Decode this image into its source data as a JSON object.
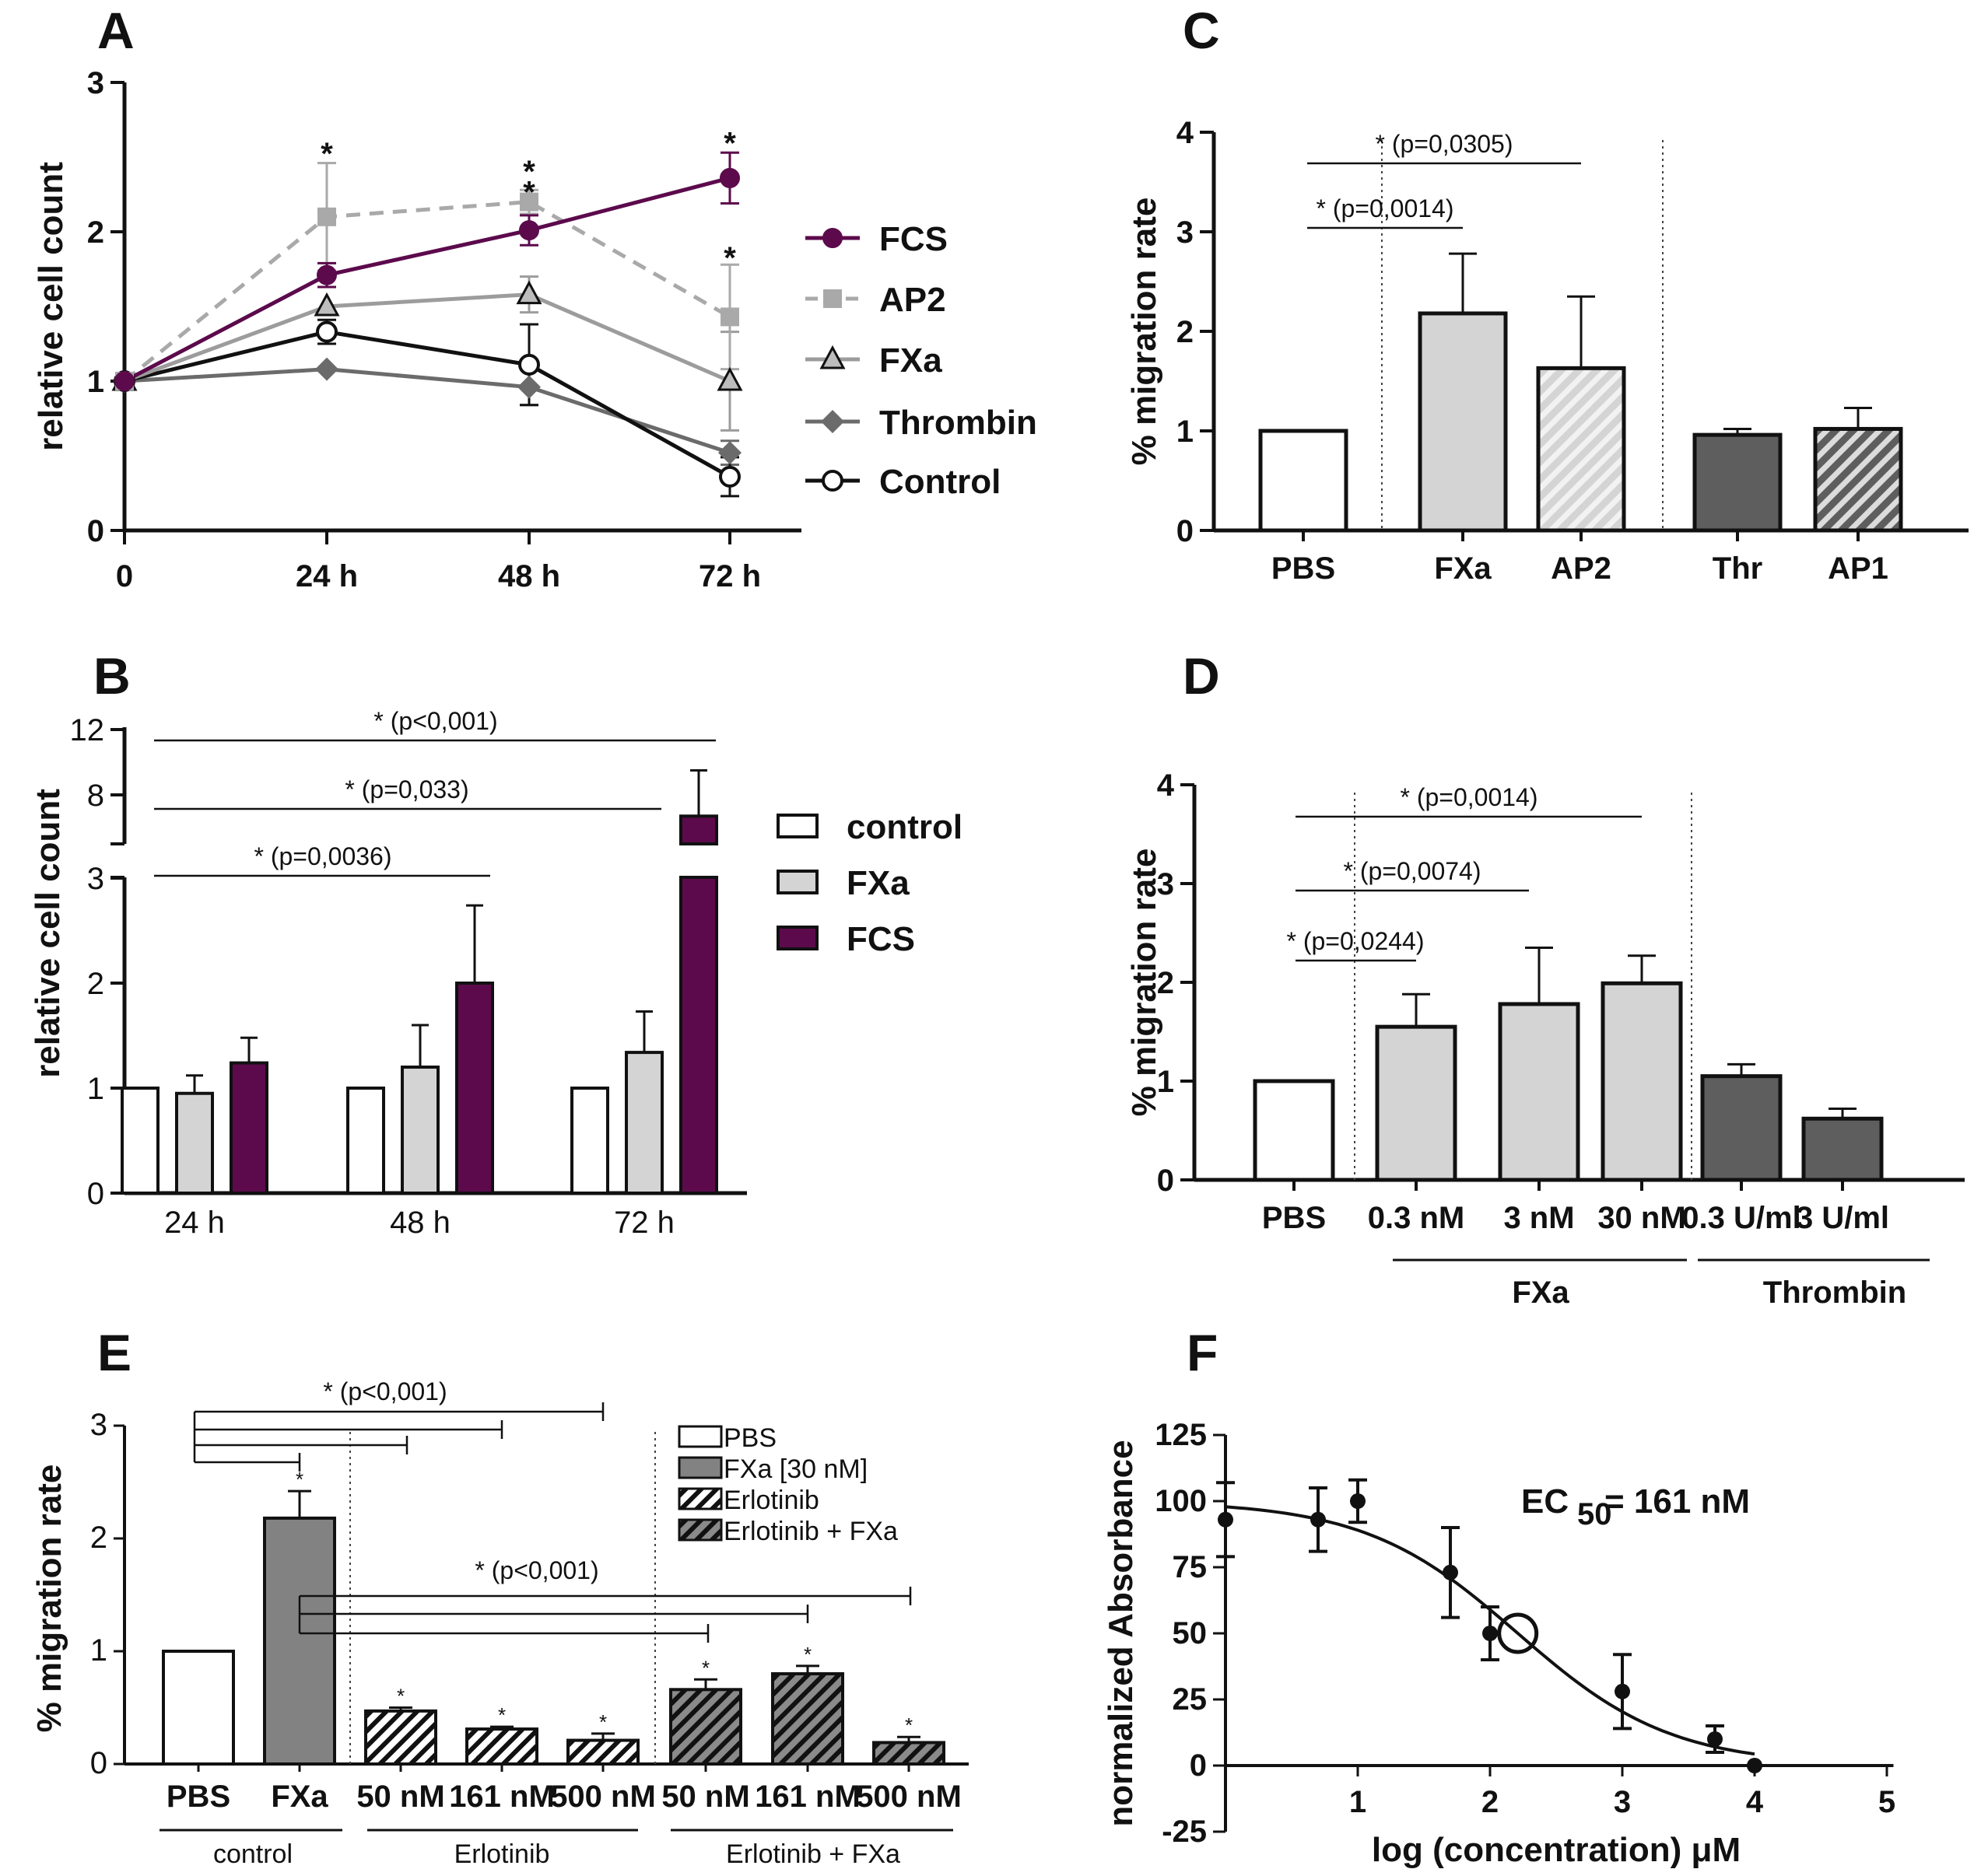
{
  "figure": {
    "panels": [
      "A",
      "B",
      "C",
      "D",
      "E",
      "F"
    ]
  },
  "colors": {
    "fcs": "#5c0a4c",
    "ap2": "#a9a9a9",
    "fxa_line": "#9c9c9c",
    "thrombin": "#6b6b6b",
    "control": "#111111",
    "light_bar": "#d4d4d4",
    "dark_bar": "#5e5e5e",
    "mid_bar": "#828282"
  },
  "chart_data": [
    {
      "id": "A",
      "type": "line",
      "ylabel": "relative cell count",
      "categories": [
        "0",
        "24 h",
        "48 h",
        "72 h"
      ],
      "ylim": [
        0,
        3
      ],
      "yticks": [
        "0",
        "1",
        "2",
        "3"
      ],
      "series": [
        {
          "name": "FCS",
          "marker": "circle-filled",
          "values": [
            1.0,
            1.71,
            2.01,
            2.36
          ],
          "err": [
            0,
            0.08,
            0.1,
            0.17
          ]
        },
        {
          "name": "AP2",
          "marker": "square",
          "dashed": true,
          "values": [
            1.0,
            2.1,
            2.2,
            1.43
          ],
          "err": [
            0,
            0.36,
            0.08,
            0.35
          ]
        },
        {
          "name": "FXa",
          "marker": "triangle",
          "values": [
            1.0,
            1.5,
            1.58,
            1.0
          ],
          "err": [
            0,
            0.0,
            0.12,
            0.33
          ]
        },
        {
          "name": "Thrombin",
          "marker": "diamond",
          "values": [
            1.0,
            1.08,
            0.96,
            0.52
          ],
          "err": [
            0,
            0.0,
            0.12,
            0.08
          ]
        },
        {
          "name": "Control",
          "marker": "circle-open",
          "values": [
            1.0,
            1.33,
            1.11,
            0.36
          ],
          "err": [
            0,
            0.08,
            0.27,
            0.13
          ]
        }
      ],
      "stars": [
        {
          "x": "24 h",
          "y": 2.6,
          "text": "*"
        },
        {
          "x": "48 h",
          "y": 2.48,
          "text": "*"
        },
        {
          "x": "48 h",
          "y": 2.34,
          "text": "*"
        },
        {
          "x": "72 h",
          "y": 2.67,
          "text": "*"
        },
        {
          "x": "72 h",
          "y": 1.9,
          "text": "*"
        }
      ]
    },
    {
      "id": "B",
      "type": "bar",
      "ylabel": "relative cell count",
      "categories": [
        "24 h",
        "48 h",
        "72 h"
      ],
      "ylim_lower": [
        0,
        3
      ],
      "ylim_upper": [
        5,
        12
      ],
      "yticks_lower": [
        "0",
        "1",
        "2",
        "3"
      ],
      "yticks_upper": [
        "8",
        "12"
      ],
      "series": [
        {
          "name": "control",
          "values": [
            1.0,
            1.0,
            1.0
          ],
          "err": [
            0,
            0,
            0
          ]
        },
        {
          "name": "FXa",
          "values": [
            0.95,
            1.2,
            1.34
          ],
          "err": [
            0.17,
            0.4,
            0.39
          ]
        },
        {
          "name": "FCS",
          "values": [
            1.24,
            2.0,
            6.7
          ],
          "err": [
            0.24,
            0.74,
            2.8
          ]
        }
      ],
      "significance": [
        {
          "label": "* (p=0,0036)",
          "from": "24 h",
          "to": "48 h"
        },
        {
          "label": "* (p=0,033)",
          "from": "24 h",
          "to": "72 h"
        },
        {
          "label": "* (p<0,001)",
          "from": "24 h",
          "to": "72 h"
        }
      ]
    },
    {
      "id": "C",
      "type": "bar",
      "ylabel": "% migration rate",
      "categories": [
        "PBS",
        "FXa",
        "AP2",
        "Thr",
        "AP1"
      ],
      "values": [
        1.0,
        2.18,
        1.63,
        0.96,
        1.02
      ],
      "err": [
        0,
        0.6,
        0.72,
        0.06,
        0.21
      ],
      "ylim": [
        0,
        4
      ],
      "yticks": [
        "0",
        "1",
        "2",
        "3",
        "4"
      ],
      "significance": [
        {
          "label": "* (p=0,0305)",
          "from": "PBS",
          "to": "AP2"
        },
        {
          "label": "* (p=0,0014)",
          "from": "PBS",
          "to": "FXa"
        }
      ]
    },
    {
      "id": "D",
      "type": "bar",
      "ylabel": "% migration rate",
      "categories": [
        "PBS",
        "0.3 nM",
        "3 nM",
        "30 nM",
        "0.3 U/ml",
        "3 U/ml"
      ],
      "values": [
        1.0,
        1.55,
        1.78,
        1.99,
        1.05,
        0.62
      ],
      "err": [
        0,
        0.33,
        0.57,
        0.28,
        0.12,
        0.1
      ],
      "ylim": [
        0,
        4
      ],
      "yticks": [
        "0",
        "1",
        "2",
        "3",
        "4"
      ],
      "groups": [
        {
          "label": "FXa",
          "from": "0.3 nM",
          "to": "30 nM"
        },
        {
          "label": "Thrombin",
          "from": "0.3 U/ml",
          "to": "3 U/ml"
        }
      ],
      "significance": [
        {
          "label": "* (p=0,0014)",
          "from": "PBS",
          "to": "30 nM"
        },
        {
          "label": "* (p=0,0074)",
          "from": "PBS",
          "to": "3 nM"
        },
        {
          "label": "* (p=0,0244)",
          "from": "PBS",
          "to": "0.3 nM"
        }
      ]
    },
    {
      "id": "E",
      "type": "bar",
      "ylabel": "% migration rate",
      "categories": [
        "PBS",
        "FXa",
        "50 nM",
        "161 nM",
        "500 nM",
        "50 nM",
        "161 nM",
        "500 nM"
      ],
      "values": [
        1.0,
        2.18,
        0.47,
        0.31,
        0.21,
        0.66,
        0.8,
        0.19
      ],
      "err": [
        0,
        0.24,
        0.03,
        0.02,
        0.06,
        0.09,
        0.07,
        0.05
      ],
      "stars": [
        "",
        "*",
        "*",
        "*",
        "*",
        "*",
        "*",
        "*"
      ],
      "ylim": [
        0,
        3
      ],
      "yticks": [
        "0",
        "1",
        "2",
        "3"
      ],
      "legend": [
        "PBS",
        "FXa [30 nM]",
        "Erlotinib",
        "Erlotinib + FXa"
      ],
      "groups": [
        {
          "label": "control",
          "from": "PBS",
          "to": "FXa"
        },
        {
          "label": "Erlotinib",
          "from": "50 nM",
          "to": "500 nM"
        },
        {
          "label": "Erlotinib + FXa",
          "from": "50 nM",
          "to": "500 nM"
        }
      ],
      "significance": [
        {
          "label": "* (p<0,001)",
          "from": "PBS",
          "to": "FXa, 50 nM, 161 nM, 500 nM (Erlotinib)"
        },
        {
          "label": "* (p<0,001)",
          "from": "FXa",
          "to": "50 nM, 161 nM, 500 nM (Erlotinib + FXa)"
        }
      ]
    },
    {
      "id": "F",
      "type": "scatter",
      "xlabel": "log (concentration) μM",
      "ylabel": "normalized Absorbance",
      "x": [
        0.0,
        0.7,
        1.0,
        1.7,
        2.0,
        3.0,
        3.7,
        4.0
      ],
      "y": [
        93,
        93,
        100,
        73,
        50,
        28,
        10,
        0
      ],
      "err": [
        14,
        12,
        8,
        17,
        10,
        14,
        5,
        0
      ],
      "xlim": [
        0,
        5
      ],
      "ylim": [
        -25,
        125
      ],
      "xticks": [
        "1",
        "2",
        "3",
        "4",
        "5"
      ],
      "yticks": [
        "-25",
        "0",
        "25",
        "50",
        "75",
        "100",
        "125"
      ],
      "ec50_label": "EC",
      "ec50_sub": "50",
      "ec50_value": " = 161 nM",
      "ec50_log": 2.21,
      "fit": {
        "top": 100,
        "bottom": 0,
        "log_ec50": 2.21,
        "hill": 0.75
      }
    }
  ]
}
